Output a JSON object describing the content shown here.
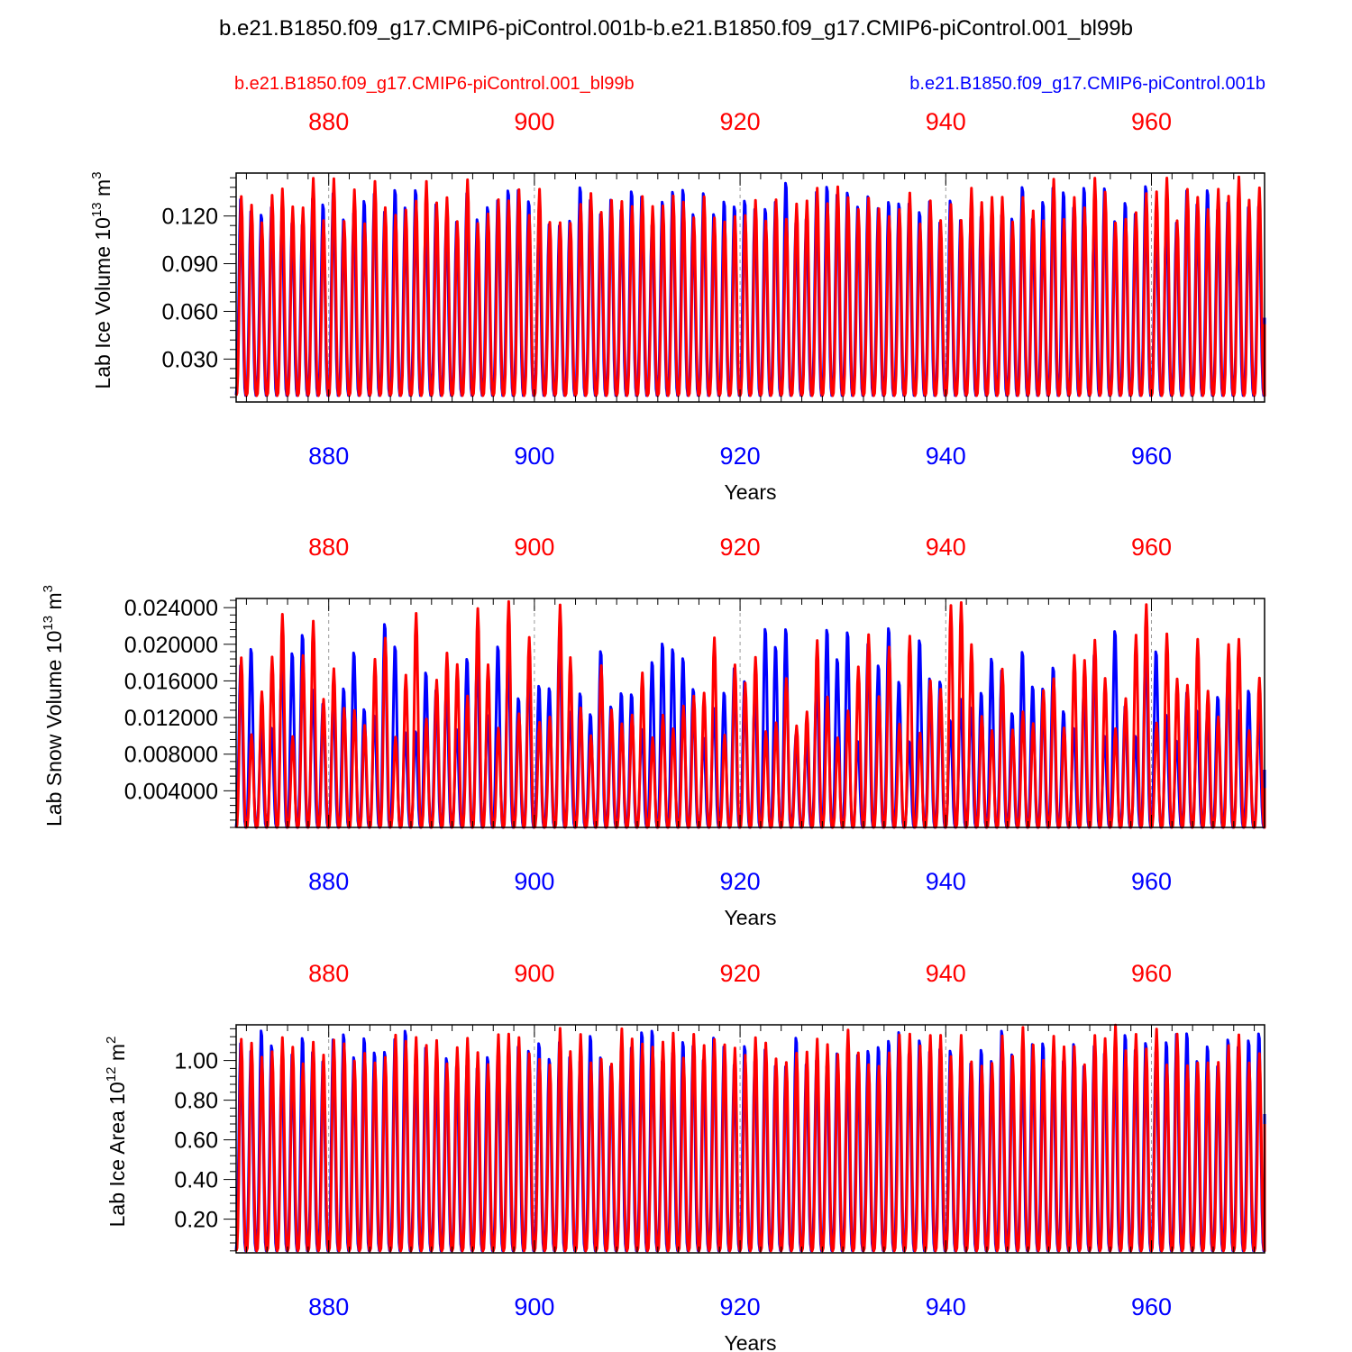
{
  "title": "b.e21.B1850.f09_g17.CMIP6-piControl.001b-b.e21.B1850.f09_g17.CMIP6-piControl.001_bl99b",
  "legend": {
    "red": "b.e21.B1850.f09_g17.CMIP6-piControl.001_bl99b",
    "blue": "b.e21.B1850.f09_g17.CMIP6-piControl.001b"
  },
  "colors": {
    "red": "#ff0000",
    "blue": "#0000ff",
    "axis": "#000000",
    "grid": "#999999"
  },
  "chart_data": [
    {
      "type": "line",
      "title": "",
      "xlabel": "Years",
      "ylabel": "Lab Ice Volume 10",
      "ylabel_exp": "13",
      "ylabel_unit": " m",
      "ylabel_unit_exp": "3",
      "xlim": [
        871,
        971
      ],
      "ylim": [
        0.003,
        0.147
      ],
      "x_ticks": [
        880,
        900,
        920,
        940,
        960
      ],
      "x_tick_labels": [
        "880",
        "900",
        "920",
        "940",
        "960"
      ],
      "y_ticks": [
        0.03,
        0.06,
        0.09,
        0.12
      ],
      "y_tick_labels": [
        "0.030",
        "0.060",
        "0.090",
        "0.120"
      ],
      "series": [
        {
          "name": "b.e21.B1850.f09_g17.CMIP6-piControl.001b",
          "color": "#0000ff",
          "peak_mean": 0.128,
          "peak_range": [
            0.115,
            0.143
          ],
          "trough": 0.007,
          "end_value": 0.056
        },
        {
          "name": "b.e21.B1850.f09_g17.CMIP6-piControl.001_bl99b",
          "color": "#ff0000",
          "peak_mean": 0.127,
          "peak_range": [
            0.115,
            0.146
          ],
          "trough": 0.007,
          "end_value": 0.052
        }
      ]
    },
    {
      "type": "line",
      "title": "",
      "xlabel": "Years",
      "ylabel": "Lab Snow Volume 10",
      "ylabel_exp": "13",
      "ylabel_unit": " m",
      "ylabel_unit_exp": "3",
      "xlim": [
        871,
        971
      ],
      "ylim": [
        0.0,
        0.025
      ],
      "x_ticks": [
        880,
        900,
        920,
        940,
        960
      ],
      "x_tick_labels": [
        "880",
        "900",
        "920",
        "940",
        "960"
      ],
      "y_ticks": [
        0.004,
        0.008,
        0.012,
        0.016,
        0.02,
        0.024
      ],
      "y_tick_labels": [
        "0.004000",
        "0.008000",
        "0.012000",
        "0.016000",
        "0.020000",
        "0.024000"
      ],
      "series": [
        {
          "name": "b.e21.B1850.f09_g17.CMIP6-piControl.001b",
          "color": "#0000ff",
          "peak_mean": 0.0155,
          "peak_range": [
            0.0095,
            0.0226
          ],
          "trough": 0.0,
          "end_value": 0.0063
        },
        {
          "name": "b.e21.B1850.f09_g17.CMIP6-piControl.001_bl99b",
          "color": "#ff0000",
          "peak_mean": 0.0155,
          "peak_range": [
            0.0095,
            0.0248
          ],
          "trough": 0.0,
          "end_value": 0.0043
        }
      ]
    },
    {
      "type": "line",
      "title": "",
      "xlabel": "Years",
      "ylabel": "Lab Ice Area 10",
      "ylabel_exp": "12",
      "ylabel_unit": " m",
      "ylabel_unit_exp": "2",
      "xlim": [
        871,
        971
      ],
      "ylim": [
        0.03,
        1.18
      ],
      "x_ticks": [
        880,
        900,
        920,
        940,
        960
      ],
      "x_tick_labels": [
        "880",
        "900",
        "920",
        "940",
        "960"
      ],
      "y_ticks": [
        0.2,
        0.4,
        0.6,
        0.8,
        1.0
      ],
      "y_tick_labels": [
        "0.20",
        "0.40",
        "0.60",
        "0.80",
        "1.00"
      ],
      "series": [
        {
          "name": "b.e21.B1850.f09_g17.CMIP6-piControl.001b",
          "color": "#0000ff",
          "peak_mean": 1.06,
          "peak_range": [
            0.97,
            1.17
          ],
          "trough": 0.04,
          "end_value": 0.73
        },
        {
          "name": "b.e21.B1850.f09_g17.CMIP6-piControl.001_bl99b",
          "color": "#ff0000",
          "peak_mean": 1.06,
          "peak_range": [
            0.97,
            1.18
          ],
          "trough": 0.04,
          "end_value": 0.68
        }
      ]
    }
  ]
}
